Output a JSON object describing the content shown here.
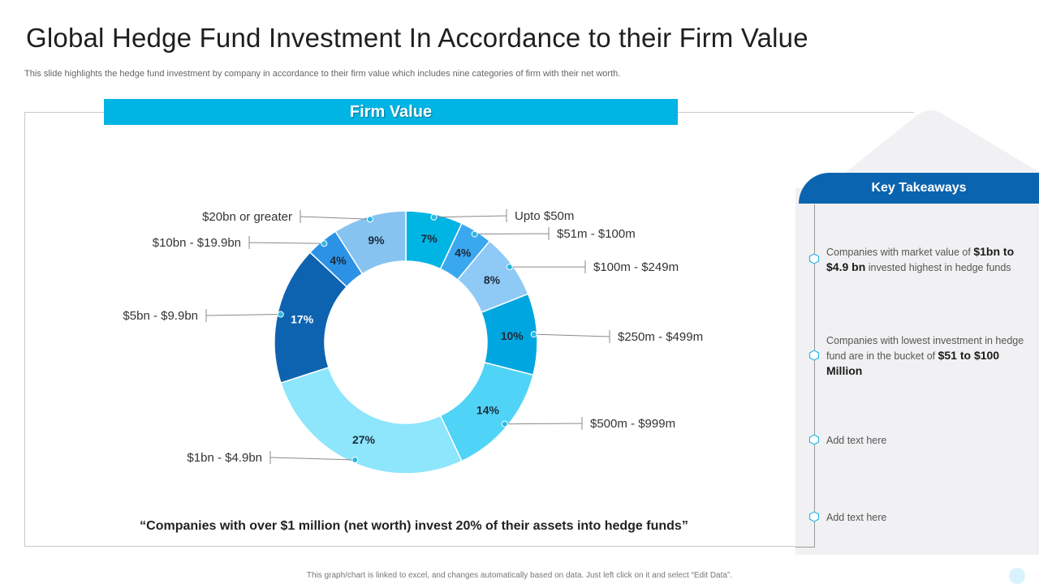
{
  "slide": {
    "title": "Global Hedge Fund Investment In Accordance to their Firm Value",
    "subtitle": "This slide highlights the hedge fund investment by company in accordance to their firm value which includes nine categories of firm with their net worth.",
    "banner": "Firm Value",
    "quote": "“Companies with over $1 million (net worth) invest 20% of their assets  into hedge funds”",
    "footnote": "This graph/chart is linked to excel, and changes automatically based on data. Just left click on it and select “Edit Data”."
  },
  "chart_data": {
    "type": "pie",
    "subtype": "donut",
    "categories": [
      "Upto $50m",
      "$51m - $100m",
      "$100m - $249m",
      "$250m - $499m",
      "$500m - $999m",
      "$1bn - $4.9bn",
      "$5bn - $9.9bn",
      "$10bn - $19.9bn",
      "$20bn or greater"
    ],
    "values": [
      7,
      4,
      8,
      10,
      14,
      27,
      17,
      4,
      9
    ],
    "data_labels": [
      "7%",
      "4%",
      "8%",
      "10%",
      "14%",
      "27%",
      "17%",
      "4%",
      "9%"
    ],
    "colors": [
      "#00b4e4",
      "#3aa8ef",
      "#8fcaf6",
      "#00a6df",
      "#4fd4f7",
      "#8de6fb",
      "#0d63b0",
      "#2c92e6",
      "#86c3f1"
    ],
    "legend": "leader-line labels"
  },
  "takeaways": {
    "header": "Key Takeaways",
    "items": [
      {
        "pre": "Companies with market value of ",
        "bold": "$1bn to $4.9 bn",
        "post": " invested highest in hedge funds"
      },
      {
        "pre": "Companies with lowest investment in hedge fund are in the bucket of ",
        "bold": "$51 to $100 Million",
        "post": ""
      },
      {
        "pre": "Add text here",
        "bold": "",
        "post": ""
      },
      {
        "pre": "Add text here",
        "bold": "",
        "post": ""
      }
    ]
  }
}
